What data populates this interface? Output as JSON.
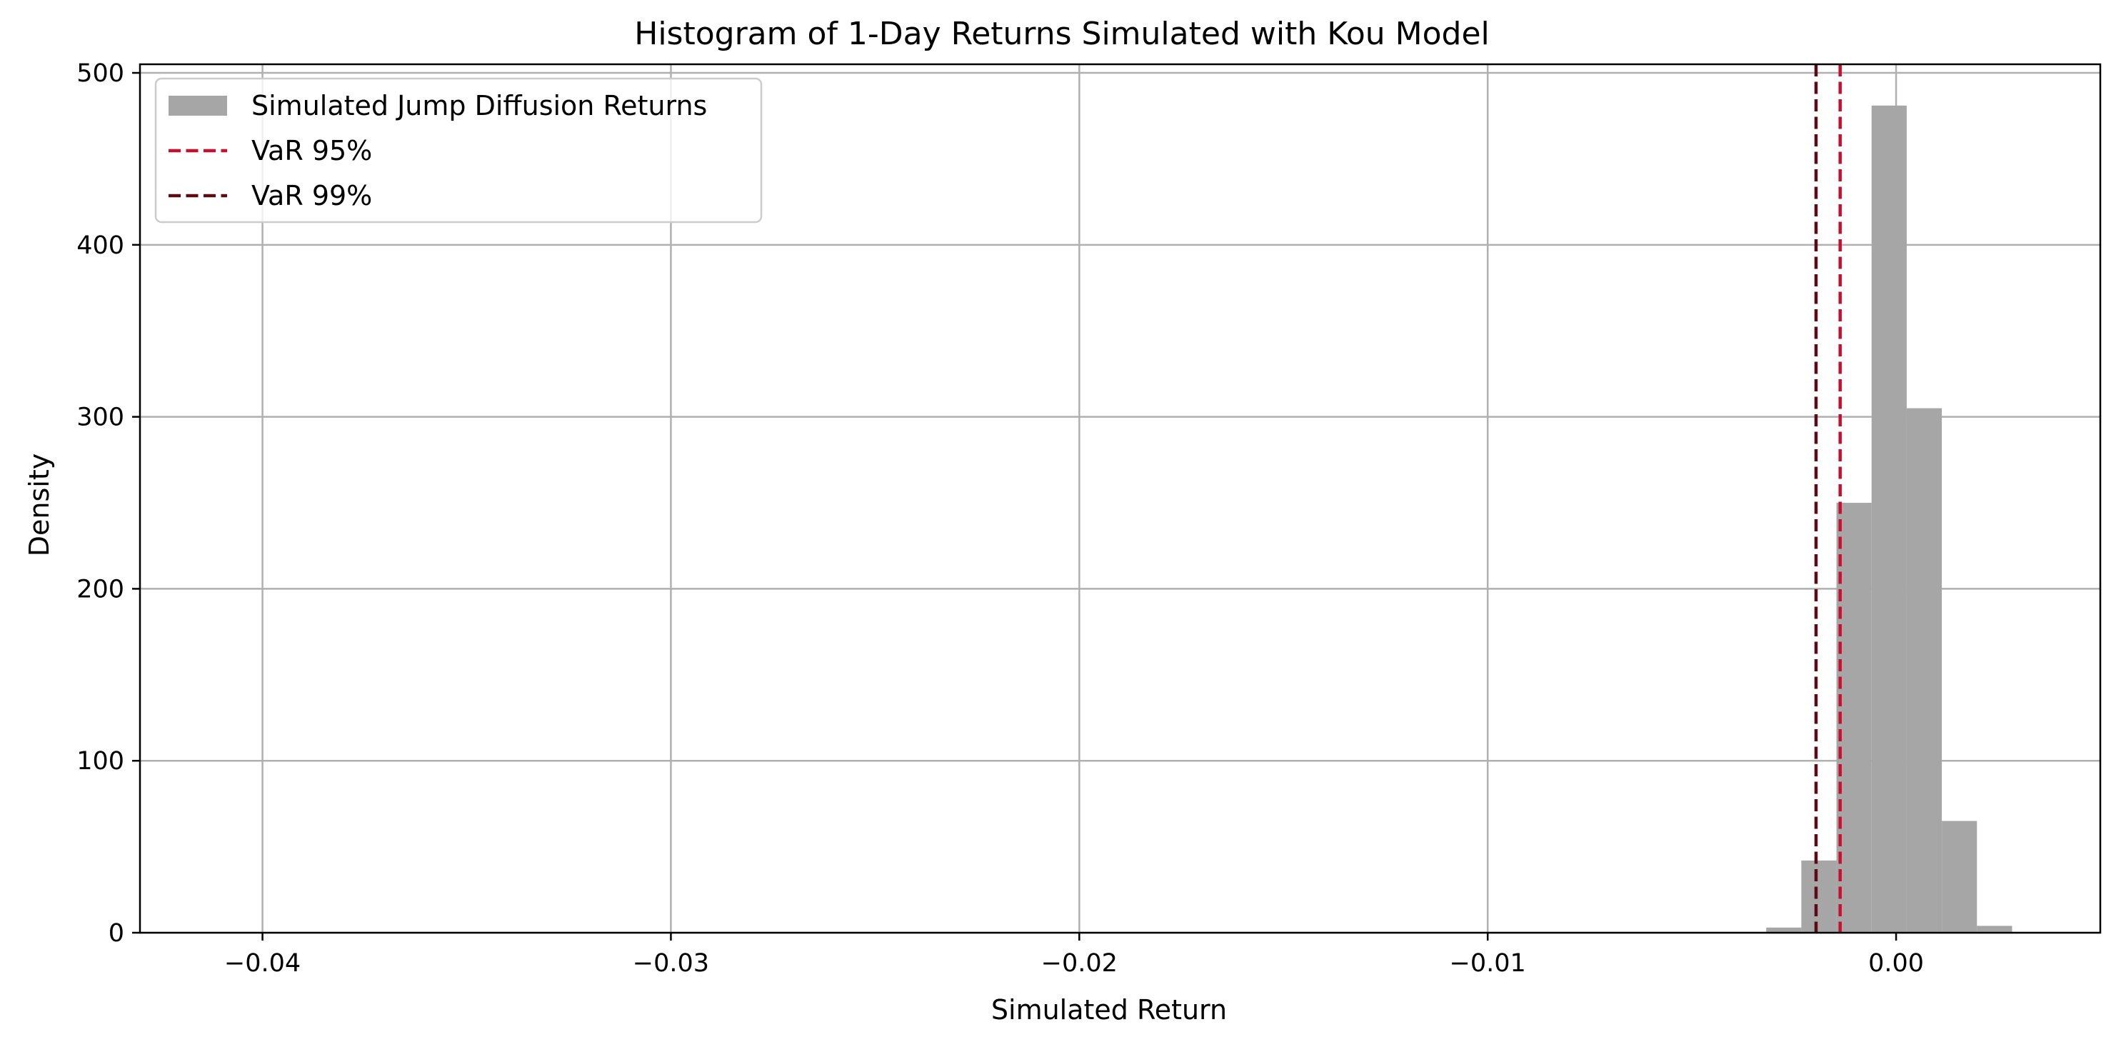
{
  "chart_data": {
    "type": "bar",
    "title": "Histogram of 1-Day Returns Simulated with Kou Model",
    "xlabel": "Simulated Return",
    "ylabel": "Density",
    "xlim": [
      -0.043,
      0.005
    ],
    "ylim": [
      0,
      505
    ],
    "xticks": [
      -0.04,
      -0.03,
      -0.02,
      -0.01,
      0.0
    ],
    "xtick_labels": [
      "−0.04",
      "−0.03",
      "−0.02",
      "−0.01",
      "0.00"
    ],
    "yticks": [
      0,
      100,
      200,
      300,
      400,
      500
    ],
    "ytick_labels": [
      "0",
      "100",
      "200",
      "300",
      "400",
      "500"
    ],
    "grid": true,
    "legend_position": "top-left",
    "series": [
      {
        "name": "Simulated Jump Diffusion Returns",
        "kind": "histogram",
        "color": "#a6a6a6",
        "bin_edges": [
          -0.00318,
          -0.00232,
          -0.00146,
          -0.0006,
          0.00026,
          0.00112,
          0.00198,
          0.00284
        ],
        "values": [
          3,
          42,
          250,
          481,
          305,
          65,
          4
        ]
      },
      {
        "name": "VaR 95%",
        "kind": "vline",
        "color": "#c8102e",
        "x": -0.00137
      },
      {
        "name": "VaR 99%",
        "kind": "vline",
        "color": "#5c0a14",
        "x": -0.00196
      }
    ]
  }
}
